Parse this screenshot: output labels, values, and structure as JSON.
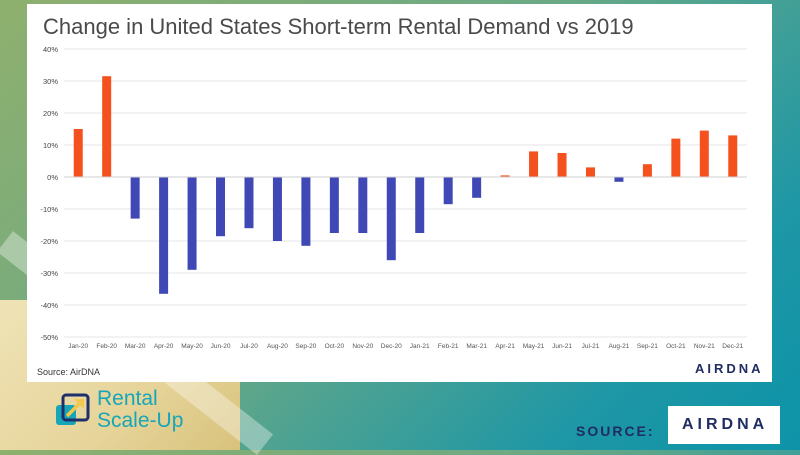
{
  "chart_data": {
    "type": "bar",
    "title": "Change in United States Short-term Rental Demand vs 2019",
    "xlabel": "",
    "ylabel": "",
    "ylim": [
      -50,
      40
    ],
    "yticks": [
      "40%",
      "30%",
      "20%",
      "10%",
      "0%",
      "-10%",
      "-20%",
      "-30%",
      "-40%",
      "-50%"
    ],
    "yticks_values": [
      40,
      30,
      20,
      10,
      0,
      -10,
      -20,
      -30,
      -40,
      -50
    ],
    "grid": true,
    "categories": [
      "Jan-20",
      "Feb-20",
      "Mar-20",
      "Apr-20",
      "May-20",
      "Jun-20",
      "Jul-20",
      "Aug-20",
      "Sep-20",
      "Oct-20",
      "Nov-20",
      "Dec-20",
      "Jan-21",
      "Feb-21",
      "Mar-21",
      "Apr-21",
      "May-21",
      "Jun-21",
      "Jul-21",
      "Aug-21",
      "Sep-21",
      "Oct-21",
      "Nov-21",
      "Dec-21"
    ],
    "values": [
      15,
      31.5,
      -13,
      -36.5,
      -29,
      -18.5,
      -16,
      -20,
      -21.5,
      -17.5,
      -17.5,
      -26,
      -17.5,
      -8.5,
      -6.5,
      0.5,
      8,
      7.5,
      3,
      -1.5,
      4,
      12,
      14.5,
      13
    ],
    "colors": {
      "positive": "#f4511e",
      "negative": "#3f48b5"
    }
  },
  "source_note": "Source: AirDNA",
  "chart_logo": "AIRDNA",
  "brand": {
    "line1": "Rental",
    "line2": "Scale-Up"
  },
  "footer": {
    "source_label": "SOURCE:",
    "logo_text": "AIRDNA"
  }
}
